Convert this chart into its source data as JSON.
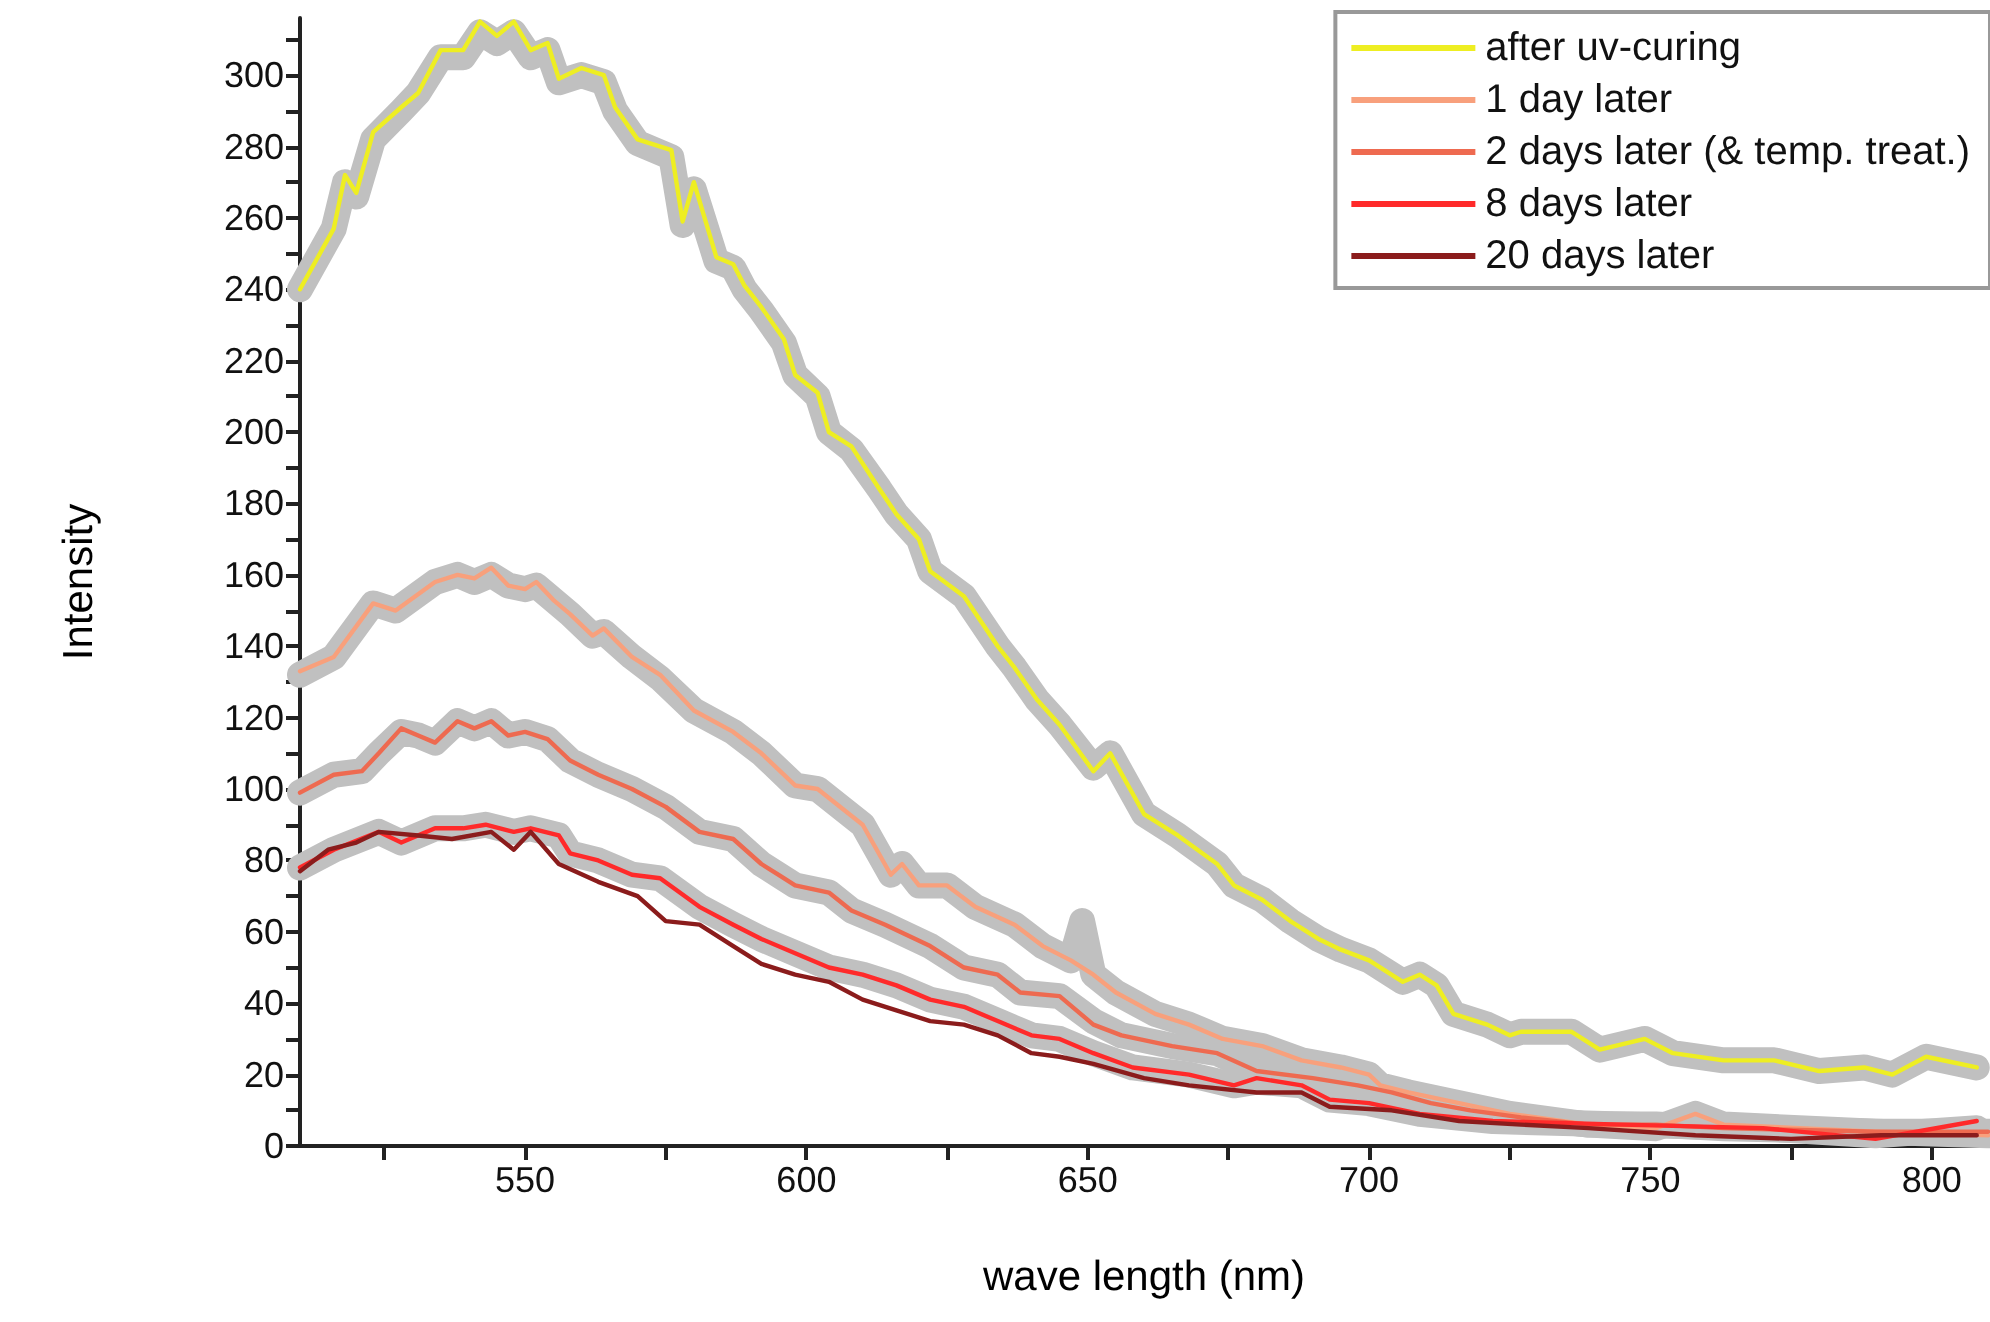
{
  "chart_data": {
    "type": "line",
    "xlabel": "wave length (nm)",
    "ylabel": "Intensity",
    "xlim": [
      510,
      810
    ],
    "ylim": [
      0,
      316
    ],
    "xticks": [
      {
        "value": 525,
        "label": null
      },
      550,
      {
        "value": 575,
        "label": null
      },
      600,
      {
        "value": 625,
        "label": null
      },
      650,
      {
        "value": 675,
        "label": null
      },
      700,
      {
        "value": 725,
        "label": null
      },
      750,
      {
        "value": 775,
        "label": null
      },
      800
    ],
    "yticks": [
      0,
      {
        "value": 10,
        "label": null
      },
      20,
      {
        "value": 30,
        "label": null
      },
      40,
      {
        "value": 50,
        "label": null
      },
      60,
      {
        "value": 70,
        "label": null
      },
      80,
      {
        "value": 90,
        "label": null
      },
      100,
      {
        "value": 110,
        "label": null
      },
      120,
      {
        "value": 130,
        "label": null
      },
      140,
      {
        "value": 150,
        "label": null
      },
      160,
      {
        "value": 170,
        "label": null
      },
      180,
      {
        "value": 190,
        "label": null
      },
      200,
      {
        "value": 210,
        "label": null
      },
      220,
      {
        "value": 230,
        "label": null
      },
      240,
      {
        "value": 250,
        "label": null
      },
      260,
      {
        "value": 270,
        "label": null
      },
      280,
      {
        "value": 290,
        "label": null
      },
      300,
      {
        "value": 310,
        "label": null
      }
    ],
    "grid": false,
    "legend": "top right",
    "marker": "none",
    "line_style": "solid",
    "series": [
      {
        "color": "#c0c0c0",
        "x": [
          510,
          516,
          518,
          520,
          523,
          528,
          531,
          535,
          539,
          542,
          545,
          548,
          551,
          554,
          556,
          560,
          564,
          566,
          570,
          576,
          578,
          580,
          584,
          587,
          589,
          592,
          596,
          598,
          602,
          604,
          608,
          613,
          616,
          620,
          622,
          628,
          634,
          637,
          641,
          645,
          651,
          654,
          660,
          666,
          673,
          676,
          681,
          686,
          691,
          695,
          700,
          706,
          709,
          712,
          715,
          721,
          725,
          727,
          736,
          741,
          749,
          754,
          763,
          772,
          780,
          788,
          793,
          799,
          808
        ],
        "values": [
          240,
          257,
          270,
          266,
          282,
          290,
          295,
          305,
          305,
          312,
          309,
          312,
          305,
          307,
          298,
          300,
          298,
          290,
          281,
          277,
          258,
          268,
          248,
          246,
          240,
          234,
          225,
          216,
          210,
          200,
          195,
          184,
          177,
          170,
          161,
          154,
          140,
          134,
          125,
          118,
          106,
          110,
          93,
          87,
          79,
          73,
          69,
          63,
          58,
          55,
          52,
          46,
          48,
          45,
          37,
          34,
          31,
          32,
          32,
          27,
          30,
          26,
          24,
          24,
          21,
          22,
          20,
          25,
          22
        ]
      },
      {
        "color": "#c0c0c0",
        "x": [
          510,
          516,
          523,
          527,
          534,
          538,
          541,
          544,
          547,
          550,
          552,
          555,
          558,
          562,
          564,
          569,
          574,
          580,
          587,
          592,
          598,
          602,
          610,
          615,
          617,
          620,
          625,
          630,
          637,
          642,
          647,
          649,
          651,
          655,
          662,
          668,
          674,
          681,
          688,
          695,
          700,
          702,
          707,
          716,
          725,
          739,
          751,
          758,
          763,
          790,
          810
        ],
        "values": [
          132,
          137,
          152,
          150,
          158,
          160,
          158,
          160,
          157,
          156,
          157,
          153,
          149,
          143,
          144,
          137,
          131,
          122,
          116,
          110,
          101,
          100,
          90,
          76,
          79,
          73,
          73,
          67,
          62,
          56,
          52,
          63,
          48,
          43,
          37,
          34,
          30,
          28,
          24,
          22,
          20,
          17,
          15,
          12,
          9,
          6,
          5,
          9,
          6,
          4,
          3
        ]
      },
      {
        "color": "#c0c0c0",
        "x": [
          510,
          516,
          521,
          524,
          528,
          531,
          534,
          538,
          541,
          544,
          547,
          550,
          554,
          558,
          563,
          569,
          575,
          581,
          587,
          592,
          595,
          598,
          604,
          608,
          614,
          622,
          628,
          634,
          638,
          645,
          651,
          656,
          665,
          673,
          680,
          690,
          698,
          704,
          711,
          718,
          727,
          739,
          751,
          763,
          790,
          810
        ],
        "values": [
          99,
          104,
          105,
          110,
          116,
          115,
          113,
          119,
          117,
          119,
          115,
          116,
          114,
          108,
          104,
          100,
          95,
          88,
          86,
          79,
          76,
          73,
          71,
          66,
          62,
          56,
          50,
          48,
          43,
          42,
          35,
          31,
          28,
          26,
          21,
          19,
          17,
          15,
          12,
          10,
          8,
          6,
          6,
          5,
          4,
          4
        ]
      },
      {
        "color": "#c0c0c0",
        "x": [
          510,
          516,
          524,
          528,
          534,
          539,
          543,
          548,
          551,
          556,
          558,
          563,
          569,
          574,
          581,
          587,
          592,
          598,
          604,
          610,
          616,
          622,
          628,
          634,
          640,
          645,
          651,
          658,
          668,
          676,
          680,
          688,
          693,
          700,
          709,
          722,
          745,
          770,
          790,
          808
        ],
        "values": [
          78,
          83,
          88,
          85,
          89,
          89,
          90,
          88,
          89,
          87,
          82,
          80,
          76,
          75,
          67,
          62,
          58,
          54,
          50,
          48,
          45,
          41,
          39,
          35,
          31,
          30,
          26,
          22,
          20,
          17,
          18,
          17,
          13,
          12,
          9,
          7,
          6,
          5,
          3,
          5
        ]
      },
      {
        "name": "after uv-curing",
        "color": "#eeee22",
        "x": [
          510,
          516,
          518,
          520,
          523,
          528,
          531,
          535,
          539,
          542,
          545,
          548,
          551,
          554,
          556,
          560,
          564,
          566,
          570,
          576,
          578,
          580,
          584,
          587,
          589,
          592,
          596,
          598,
          602,
          604,
          608,
          613,
          616,
          620,
          622,
          628,
          634,
          637,
          641,
          645,
          651,
          654,
          660,
          666,
          673,
          676,
          681,
          686,
          691,
          695,
          700,
          706,
          709,
          712,
          715,
          721,
          725,
          727,
          736,
          741,
          749,
          754,
          763,
          772,
          780,
          788,
          793,
          799,
          808
        ],
        "values": [
          240,
          257,
          272,
          267,
          284,
          291,
          295,
          307,
          307,
          315,
          311,
          315,
          307,
          309,
          299,
          302,
          300,
          291,
          282,
          279,
          259,
          270,
          249,
          247,
          241,
          235,
          226,
          216,
          211,
          200,
          196,
          184,
          177,
          170,
          161,
          154,
          140,
          134,
          125,
          118,
          105,
          110,
          93,
          87,
          79,
          73,
          69,
          63,
          58,
          55,
          52,
          46,
          48,
          45,
          37,
          34,
          31,
          32,
          32,
          27,
          30,
          26,
          24,
          24,
          21,
          22,
          20,
          25,
          22
        ]
      },
      {
        "name": "1 day later",
        "color": "#f8a07c",
        "x": [
          510,
          516,
          523,
          527,
          534,
          538,
          541,
          544,
          547,
          550,
          552,
          555,
          558,
          562,
          564,
          569,
          574,
          580,
          587,
          592,
          598,
          602,
          610,
          615,
          617,
          620,
          625,
          630,
          637,
          642,
          647,
          651,
          655,
          662,
          668,
          674,
          681,
          688,
          695,
          700,
          702,
          707,
          716,
          725,
          739,
          751,
          758,
          763,
          790,
          810
        ],
        "values": [
          133,
          137,
          152,
          150,
          158,
          160,
          159,
          162,
          157,
          156,
          158,
          153,
          149,
          143,
          145,
          137,
          132,
          122,
          116,
          110,
          101,
          100,
          90,
          76,
          79,
          73,
          73,
          67,
          62,
          56,
          52,
          48,
          43,
          37,
          34,
          30,
          28,
          24,
          22,
          20,
          17,
          15,
          12,
          9,
          6,
          5,
          9,
          6,
          4,
          3
        ]
      },
      {
        "name": "2 days later (& temp. treat.)",
        "color": "#ee6a50",
        "x": [
          510,
          516,
          521,
          524,
          528,
          531,
          534,
          538,
          541,
          544,
          547,
          550,
          554,
          558,
          563,
          569,
          575,
          581,
          587,
          592,
          595,
          598,
          604,
          608,
          614,
          622,
          628,
          634,
          638,
          645,
          651,
          656,
          665,
          673,
          680,
          690,
          698,
          704,
          711,
          718,
          727,
          739,
          751,
          763,
          790,
          810
        ],
        "values": [
          99,
          104,
          105,
          110,
          117,
          115,
          113,
          119,
          117,
          119,
          115,
          116,
          114,
          108,
          104,
          100,
          95,
          88,
          86,
          79,
          76,
          73,
          71,
          66,
          62,
          56,
          50,
          48,
          43,
          42,
          34,
          31,
          28,
          26,
          21,
          19,
          17,
          15,
          12,
          10,
          8,
          6,
          6,
          5,
          4,
          4
        ]
      },
      {
        "name": "8 days later",
        "color": "#ff2a2a",
        "x": [
          510,
          516,
          524,
          528,
          534,
          539,
          543,
          548,
          551,
          556,
          558,
          563,
          569,
          574,
          581,
          587,
          592,
          598,
          604,
          610,
          616,
          622,
          628,
          634,
          640,
          645,
          651,
          658,
          668,
          676,
          680,
          688,
          693,
          700,
          709,
          722,
          745,
          770,
          790,
          808
        ],
        "values": [
          78,
          83,
          88,
          85,
          89,
          89,
          90,
          88,
          89,
          87,
          82,
          80,
          76,
          75,
          67,
          62,
          58,
          54,
          50,
          48,
          45,
          41,
          39,
          35,
          31,
          30,
          26,
          22,
          20,
          17,
          19,
          17,
          13,
          12,
          9,
          7,
          6,
          5,
          2,
          7
        ]
      },
      {
        "name": "20 days later",
        "color": "#8b1c1c",
        "x": [
          510,
          515,
          520,
          524,
          531,
          537,
          544,
          548,
          551,
          556,
          563,
          570,
          575,
          581,
          587,
          592,
          598,
          604,
          610,
          616,
          622,
          628,
          634,
          640,
          645,
          651,
          660,
          668,
          680,
          688,
          693,
          704,
          716,
          727,
          739,
          758,
          775,
          791,
          808
        ],
        "values": [
          77,
          83,
          85,
          88,
          87,
          86,
          88,
          83,
          88,
          79,
          74,
          70,
          63,
          62,
          56,
          51,
          48,
          46,
          41,
          38,
          35,
          34,
          31,
          26,
          25,
          23,
          19,
          17,
          15,
          15,
          11,
          10,
          7,
          6,
          5,
          3,
          2,
          3,
          3
        ]
      }
    ]
  }
}
